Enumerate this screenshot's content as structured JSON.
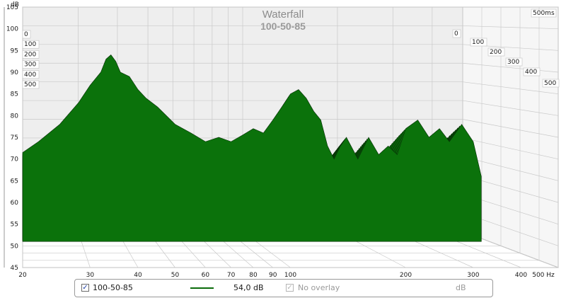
{
  "colors": {
    "fill": "#0b720b",
    "stroke": "#062d06",
    "grid": "#c9c9c9",
    "axis_text": "#1a1a1a",
    "title": "#8c8c8c",
    "legend_line": "#0a6b0a"
  },
  "chart_data": {
    "type": "area",
    "title": "Waterfall",
    "subtitle": "100-50-85",
    "y_unit": "dB",
    "x_unit": "Hz",
    "x_scale": "log",
    "xlim": [
      20,
      500
    ],
    "ylim": [
      45,
      105
    ],
    "x_ticks": [
      "20",
      "30",
      "40",
      "50",
      "60",
      "70",
      "80",
      "90",
      "100",
      "200",
      "300",
      "400",
      "500 Hz"
    ],
    "x_tick_values": [
      20,
      30,
      40,
      50,
      60,
      70,
      80,
      90,
      100,
      200,
      300,
      400,
      500
    ],
    "y_ticks": [
      "105",
      "100",
      "95",
      "90",
      "85",
      "80",
      "75",
      "70",
      "65",
      "60",
      "55",
      "50",
      "45"
    ],
    "y_tick_values": [
      105,
      100,
      95,
      90,
      85,
      80,
      75,
      70,
      65,
      60,
      55,
      50,
      45
    ],
    "time_ticks_left": [
      "0",
      "100",
      "200",
      "300",
      "400",
      "500"
    ],
    "time_ticks_right": [
      "0",
      "100",
      "200",
      "300",
      "400",
      "500"
    ],
    "time_corner_label": "500ms",
    "time_ms": [
      0,
      100,
      200,
      300,
      400,
      500
    ],
    "series": [
      {
        "name": "100-50-85",
        "slice_count": 40,
        "front_slice": {
          "x": [
            20,
            22,
            25,
            28,
            30,
            32,
            33,
            34,
            35,
            36,
            38,
            40,
            42,
            45,
            50,
            55,
            60,
            65,
            70,
            75,
            80,
            85,
            90,
            95,
            100,
            105,
            110,
            115,
            120,
            125,
            130,
            135,
            140,
            150,
            160,
            170,
            180,
            190,
            200,
            215,
            230,
            245,
            260,
            280,
            300,
            315
          ],
          "y": [
            71.5,
            74,
            78,
            83,
            87,
            90,
            93,
            94,
            92.5,
            90,
            89,
            86,
            84,
            82,
            78,
            76,
            74,
            75,
            74,
            75.5,
            77,
            76,
            79,
            82,
            85,
            86,
            84,
            81,
            79,
            73,
            70,
            73,
            75,
            70,
            75,
            71,
            73,
            71,
            77,
            79,
            75,
            77,
            74,
            78,
            74,
            66
          ]
        }
      }
    ]
  },
  "legend": {
    "item1_label": "100-50-85",
    "item1_value": "54,0 dB",
    "item2_label": "No overlay",
    "item2_unit": "dB"
  }
}
